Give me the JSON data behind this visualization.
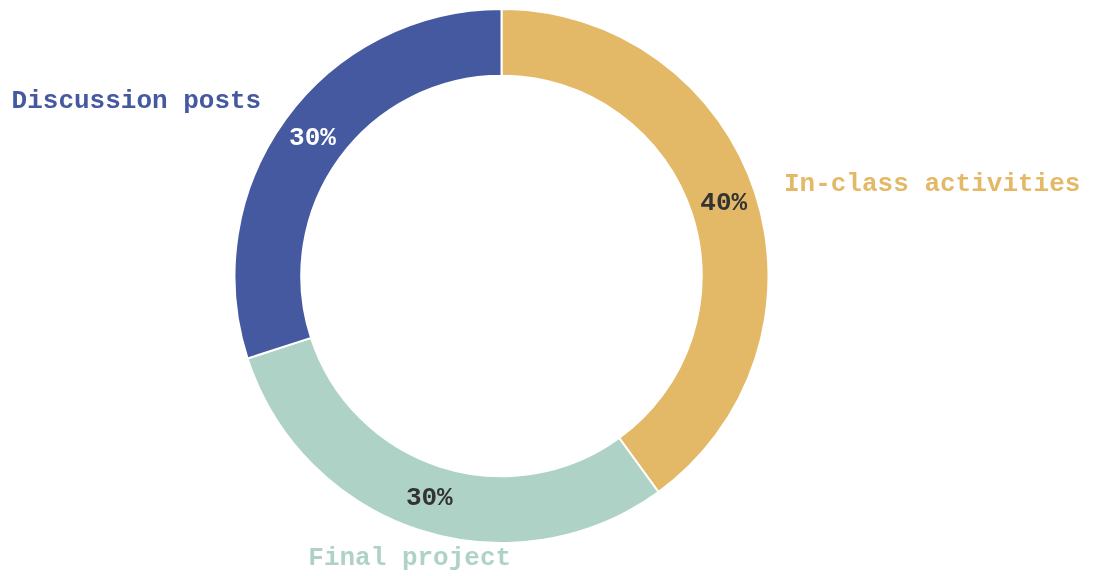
{
  "chart_data": {
    "type": "donut",
    "categories": [
      "In-class activities",
      "Final project",
      "Discussion posts"
    ],
    "values": [
      40,
      30,
      30
    ],
    "colors": [
      "#e3b968",
      "#aed3c6",
      "#4559a1"
    ],
    "value_labels": [
      "40%",
      "30%",
      "30%"
    ],
    "legend": false
  }
}
